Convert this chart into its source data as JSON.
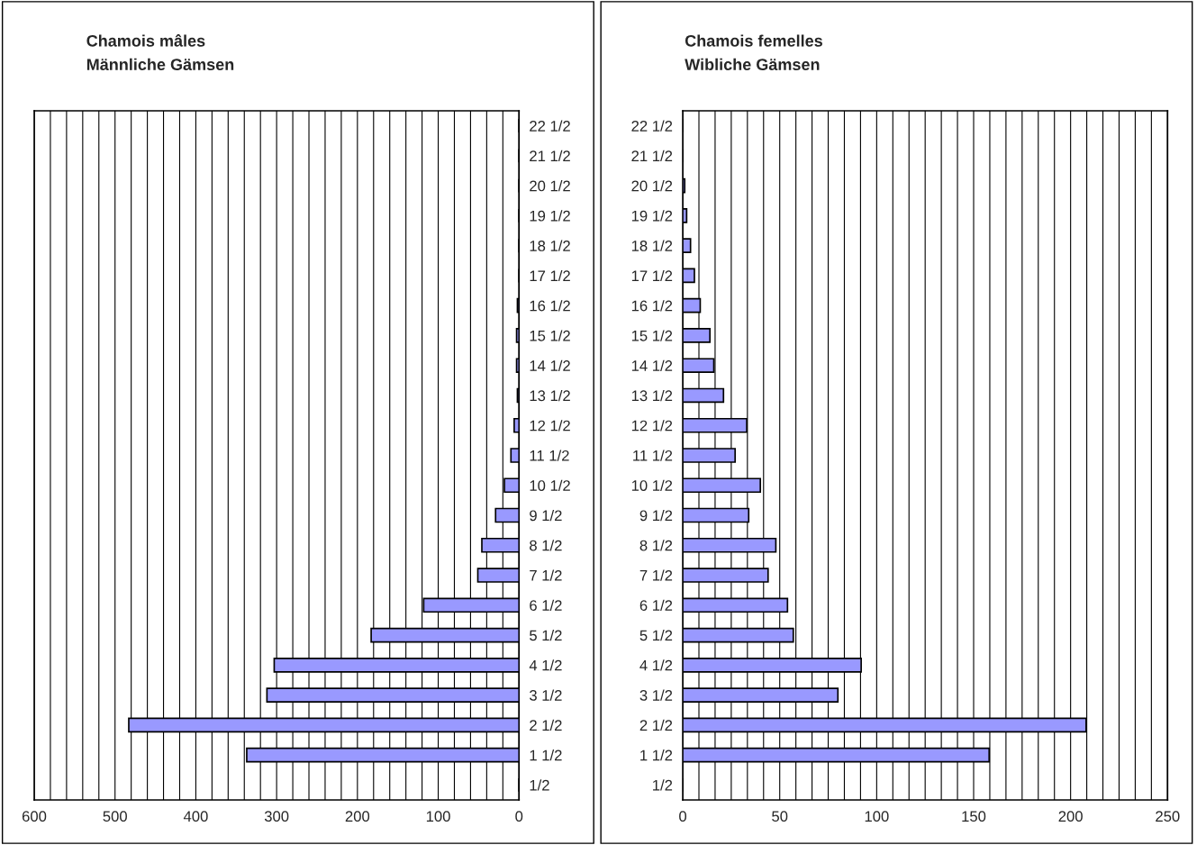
{
  "chart_data": [
    {
      "type": "bar",
      "orientation": "horizontal",
      "title": "Chamois mâles",
      "subtitle": "Männliche Gämsen",
      "categories": [
        "22 1/2",
        "21 1/2",
        "20 1/2",
        "19 1/2",
        "18 1/2",
        "17 1/2",
        "16 1/2",
        "15 1/2",
        "14 1/2",
        "13 1/2",
        "12 1/2",
        "11 1/2",
        "10 1/2",
        "9 1/2",
        "8 1/2",
        "7 1/2",
        "6 1/2",
        "5 1/2",
        "4 1/2",
        "3 1/2",
        "2 1/2",
        "1 1/2",
        "1/2"
      ],
      "values": [
        0,
        0,
        0,
        0,
        0,
        0,
        2,
        3,
        3,
        2,
        6,
        10,
        18,
        29,
        46,
        51,
        118,
        183,
        303,
        312,
        483,
        337,
        0
      ],
      "color": "#9999ff",
      "xlim": [
        600,
        0
      ],
      "xticks": [
        600,
        500,
        400,
        300,
        200,
        100,
        0
      ],
      "grid": "x"
    },
    {
      "type": "bar",
      "orientation": "horizontal",
      "title": "Chamois femelles",
      "subtitle": "Wibliche Gämsen",
      "categories": [
        "22 1/2",
        "21 1/2",
        "20 1/2",
        "19 1/2",
        "18 1/2",
        "17 1/2",
        "16 1/2",
        "15 1/2",
        "14 1/2",
        "13 1/2",
        "12 1/2",
        "11 1/2",
        "10 1/2",
        "9 1/2",
        "8 1/2",
        "7 1/2",
        "6 1/2",
        "5 1/2",
        "4 1/2",
        "3 1/2",
        "2 1/2",
        "1 1/2",
        "1/2"
      ],
      "values": [
        0,
        0,
        1,
        2,
        4,
        6,
        9,
        14,
        16,
        21,
        33,
        27,
        40,
        34,
        48,
        44,
        54,
        57,
        92,
        80,
        208,
        158,
        0
      ],
      "color": "#9999ff",
      "xlim": [
        0,
        250
      ],
      "xticks": [
        0,
        50,
        100,
        150,
        200,
        250
      ],
      "grid": "x"
    }
  ]
}
